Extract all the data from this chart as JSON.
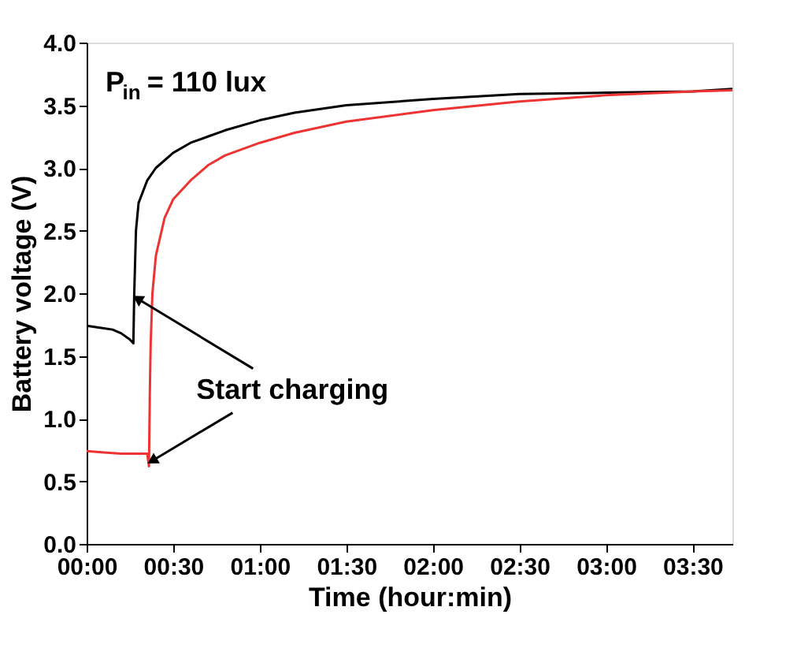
{
  "chart_data": {
    "type": "line",
    "xlabel": "Time (hour:min)",
    "ylabel": "Battery voltage (V)",
    "xlim": [
      0,
      3.73
    ],
    "xticks": [
      {
        "value": 0,
        "label": "00:00"
      },
      {
        "value": 0.5,
        "label": "00:30"
      },
      {
        "value": 1,
        "label": "01:00"
      },
      {
        "value": 1.5,
        "label": "01:30"
      },
      {
        "value": 2,
        "label": "02:00"
      },
      {
        "value": 2.5,
        "label": "02:30"
      },
      {
        "value": 3,
        "label": "03:00"
      },
      {
        "value": 3.5,
        "label": "03:30"
      }
    ],
    "ylim": [
      0,
      4
    ],
    "yticks": [
      {
        "value": 0,
        "label": "0.0"
      },
      {
        "value": 0.5,
        "label": "0.5"
      },
      {
        "value": 1,
        "label": "1.0"
      },
      {
        "value": 1.5,
        "label": "1.5"
      },
      {
        "value": 2,
        "label": "2.0"
      },
      {
        "value": 2.5,
        "label": "2.5"
      },
      {
        "value": 3,
        "label": "3.0"
      },
      {
        "value": 3.5,
        "label": "3.5"
      },
      {
        "value": 4,
        "label": "4.0"
      }
    ],
    "grid": false,
    "legend": false,
    "marker": "none",
    "line_style": "solid",
    "series": [
      {
        "color": "#000000",
        "x": [
          0,
          0.1,
          0.15,
          0.2,
          0.25,
          0.27,
          0.275,
          0.285,
          0.3,
          0.35,
          0.4,
          0.5,
          0.6,
          0.7,
          0.8,
          1.0,
          1.2,
          1.5,
          2.0,
          2.5,
          3.0,
          3.5,
          3.73
        ],
        "values": [
          1.74,
          1.72,
          1.71,
          1.68,
          1.63,
          1.6,
          2.0,
          2.5,
          2.72,
          2.9,
          3.0,
          3.12,
          3.2,
          3.25,
          3.3,
          3.38,
          3.44,
          3.5,
          3.55,
          3.59,
          3.6,
          3.61,
          3.63
        ]
      },
      {
        "color": "#ee3333",
        "x": [
          0,
          0.1,
          0.2,
          0.35,
          0.36,
          0.365,
          0.37,
          0.38,
          0.4,
          0.45,
          0.5,
          0.6,
          0.7,
          0.8,
          1.0,
          1.2,
          1.5,
          2.0,
          2.5,
          3.0,
          3.5,
          3.73
        ],
        "values": [
          0.74,
          0.73,
          0.72,
          0.72,
          0.62,
          1.2,
          1.6,
          2.0,
          2.3,
          2.6,
          2.75,
          2.9,
          3.02,
          3.1,
          3.2,
          3.28,
          3.37,
          3.46,
          3.53,
          3.58,
          3.61,
          3.62
        ]
      }
    ],
    "annotations": [
      "P$_{in}$ = 110 lux",
      {
        "text": "Start charging",
        "x": 0.27,
        "y": 1.6
      }
    ]
  }
}
